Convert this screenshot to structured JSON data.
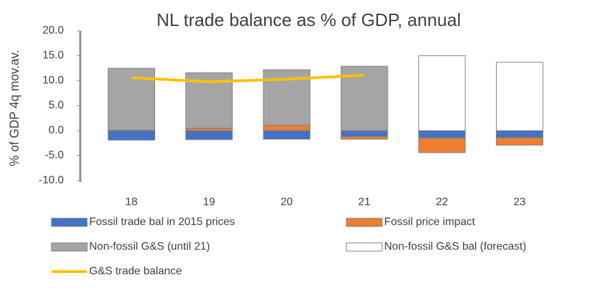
{
  "chart_data": {
    "type": "bar",
    "stacked": true,
    "title": "NL trade balance as % of GDP, annual",
    "y_label": "% of GDP 4q mov.av.",
    "categories": [
      "18",
      "19",
      "20",
      "21",
      "22",
      "23"
    ],
    "ylim": [
      -10,
      20
    ],
    "yticks": [
      {
        "value": -10,
        "label": "-10.0"
      },
      {
        "value": -5,
        "label": "-5.0"
      },
      {
        "value": 0,
        "label": "0.0"
      },
      {
        "value": 5,
        "label": "5.0"
      },
      {
        "value": 10,
        "label": "10.0"
      },
      {
        "value": 15,
        "label": "15.0"
      },
      {
        "value": 20,
        "label": "20.0"
      }
    ],
    "series": [
      {
        "name": "Fossil trade bal in 2015 prices",
        "color": "#4472c4",
        "values": [
          -1.9,
          -1.8,
          -1.7,
          -1.2,
          -1.5,
          -1.4
        ]
      },
      {
        "name": "Fossil price impact",
        "color": "#ed7d31",
        "values": [
          0.1,
          0.5,
          1.1,
          -0.5,
          -2.9,
          -1.5
        ]
      },
      {
        "name": "Non-fossil G&S (until 21)",
        "color": "#a5a5a5",
        "values": [
          12.4,
          11.1,
          11.1,
          12.9,
          null,
          null
        ]
      },
      {
        "name": "Non-fossil G&S bal (forecast)",
        "color": "#ffffff",
        "values": [
          null,
          null,
          null,
          null,
          15.0,
          13.7
        ]
      },
      {
        "name": "G&S trade balance",
        "color": "#ffc000",
        "type": "line",
        "values": [
          10.6,
          9.8,
          10.3,
          11.1,
          null,
          null
        ]
      }
    ]
  }
}
